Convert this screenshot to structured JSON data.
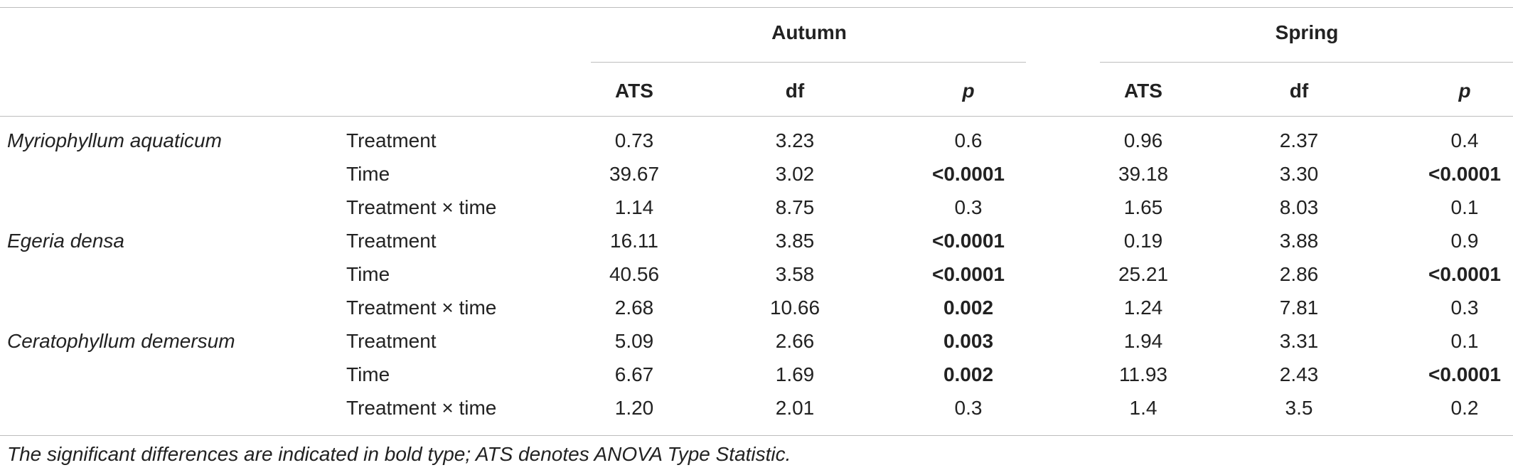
{
  "table": {
    "groups": [
      "Autumn",
      "Spring"
    ],
    "columns": [
      "ATS",
      "df",
      "p",
      "ATS",
      "df",
      "p"
    ],
    "rows": [
      {
        "species": "Myriophyllum aquaticum",
        "effect": "Treatment",
        "values": [
          "0.73",
          "3.23",
          "0.6",
          "0.96",
          "2.37",
          "0.4"
        ],
        "bold": [
          false,
          false,
          false,
          false,
          false,
          false
        ]
      },
      {
        "species": "",
        "effect": "Time",
        "values": [
          "39.67",
          "3.02",
          "<0.0001",
          "39.18",
          "3.30",
          "<0.0001"
        ],
        "bold": [
          false,
          false,
          true,
          false,
          false,
          true
        ]
      },
      {
        "species": "",
        "effect": "Treatment × time",
        "values": [
          "1.14",
          "8.75",
          "0.3",
          "1.65",
          "8.03",
          "0.1"
        ],
        "bold": [
          false,
          false,
          false,
          false,
          false,
          false
        ]
      },
      {
        "species": "Egeria densa",
        "effect": "Treatment",
        "values": [
          "16.11",
          "3.85",
          "<0.0001",
          "0.19",
          "3.88",
          "0.9"
        ],
        "bold": [
          false,
          false,
          true,
          false,
          false,
          false
        ]
      },
      {
        "species": "",
        "effect": "Time",
        "values": [
          "40.56",
          "3.58",
          "<0.0001",
          "25.21",
          "2.86",
          "<0.0001"
        ],
        "bold": [
          false,
          false,
          true,
          false,
          false,
          true
        ]
      },
      {
        "species": "",
        "effect": "Treatment × time",
        "values": [
          "2.68",
          "10.66",
          "0.002",
          "1.24",
          "7.81",
          "0.3"
        ],
        "bold": [
          false,
          false,
          true,
          false,
          false,
          false
        ]
      },
      {
        "species": "Ceratophyllum demersum",
        "effect": "Treatment",
        "values": [
          "5.09",
          "2.66",
          "0.003",
          "1.94",
          "3.31",
          "0.1"
        ],
        "bold": [
          false,
          false,
          true,
          false,
          false,
          false
        ]
      },
      {
        "species": "",
        "effect": "Time",
        "values": [
          "6.67",
          "1.69",
          "0.002",
          "11.93",
          "2.43",
          "<0.0001"
        ],
        "bold": [
          false,
          false,
          true,
          false,
          false,
          true
        ]
      },
      {
        "species": "",
        "effect": "Treatment × time",
        "values": [
          "1.20",
          "2.01",
          "0.3",
          "1.4",
          "3.5",
          "0.2"
        ],
        "bold": [
          false,
          false,
          false,
          false,
          false,
          false
        ]
      }
    ]
  },
  "footnote": "The significant differences are indicated in bold type; ATS denotes ANOVA Type Statistic."
}
